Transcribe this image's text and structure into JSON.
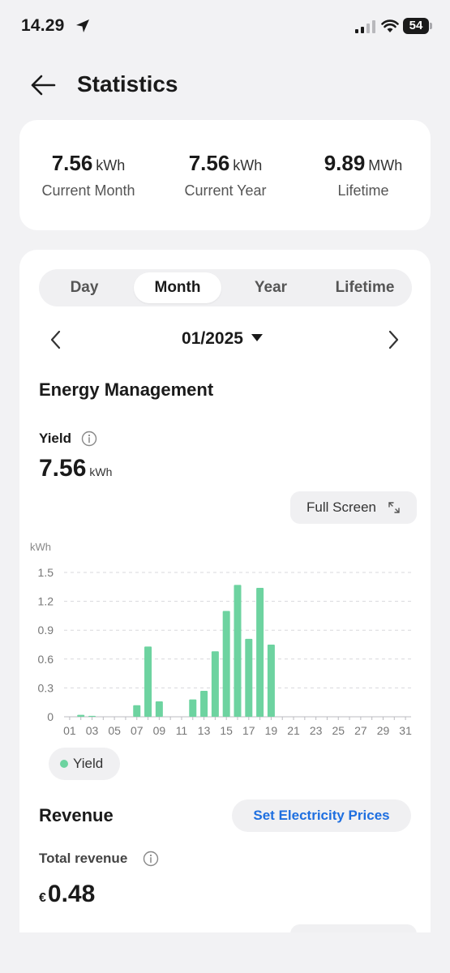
{
  "status_bar": {
    "time": "14.29",
    "battery": "54"
  },
  "header": {
    "title": "Statistics"
  },
  "summary": [
    {
      "value": "7.56",
      "unit": "kWh",
      "label": "Current Month"
    },
    {
      "value": "7.56",
      "unit": "kWh",
      "label": "Current Year"
    },
    {
      "value": "9.89",
      "unit": "MWh",
      "label": "Lifetime"
    }
  ],
  "tabs": [
    {
      "label": "Day",
      "active": false
    },
    {
      "label": "Month",
      "active": true
    },
    {
      "label": "Year",
      "active": false
    },
    {
      "label": "Lifetime",
      "active": false
    }
  ],
  "date_picker": {
    "value": "01/2025"
  },
  "energy": {
    "title": "Energy Management",
    "yield_label": "Yield",
    "yield_value": "7.56",
    "yield_unit": "kWh",
    "fullscreen_label": "Full Screen"
  },
  "chart_data": {
    "type": "bar",
    "ylabel": "kWh",
    "ylim": [
      0,
      1.5
    ],
    "y_ticks": [
      "0",
      "0.3",
      "0.6",
      "0.9",
      "1.2",
      "1.5"
    ],
    "x_tick_labels": [
      "01",
      "03",
      "05",
      "07",
      "09",
      "11",
      "13",
      "15",
      "17",
      "19",
      "21",
      "23",
      "25",
      "27",
      "29",
      "31"
    ],
    "categories": [
      "01",
      "02",
      "03",
      "04",
      "05",
      "06",
      "07",
      "08",
      "09",
      "10",
      "11",
      "12",
      "13",
      "14",
      "15",
      "16",
      "17",
      "18",
      "19",
      "20",
      "21",
      "22",
      "23",
      "24",
      "25",
      "26",
      "27",
      "28",
      "29",
      "30",
      "31"
    ],
    "series": [
      {
        "name": "Yield",
        "color": "#6dd3a0",
        "values": [
          0,
          0.02,
          0.01,
          0,
          0,
          0,
          0.12,
          0.73,
          0.16,
          0,
          0,
          0.18,
          0.27,
          0.68,
          1.1,
          1.37,
          0.81,
          1.34,
          0.75,
          0,
          0,
          0,
          0,
          0,
          0,
          0,
          0,
          0,
          0,
          0,
          0
        ]
      }
    ],
    "grid": true,
    "legend": "bottom-left"
  },
  "revenue": {
    "title": "Revenue",
    "set_prices_label": "Set Electricity Prices",
    "total_label": "Total revenue",
    "currency": "€",
    "total_value": "0.48"
  }
}
